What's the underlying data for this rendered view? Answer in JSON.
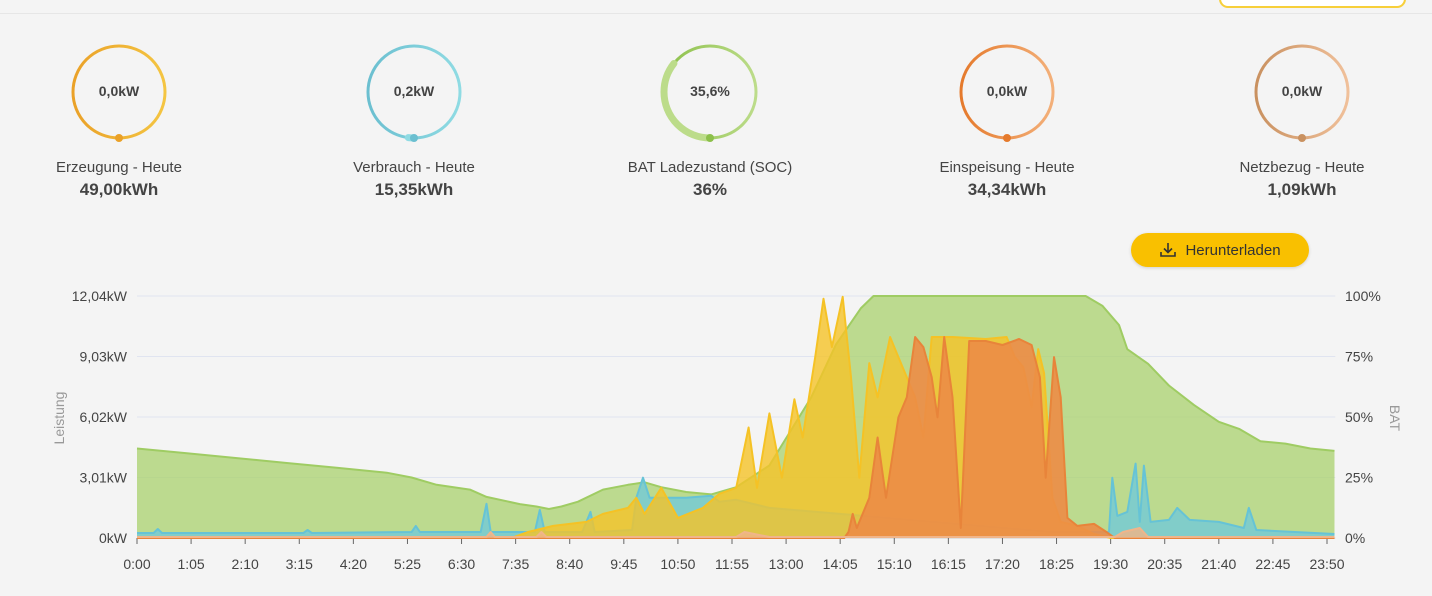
{
  "gauges": [
    {
      "value": "0,0kW",
      "label": "Erzeugung - Heute",
      "total": "49,00kWh",
      "color": "#eaa128",
      "color2": "#f4c542",
      "fill": 0
    },
    {
      "value": "0,2kW",
      "label": "Verbrauch - Heute",
      "total": "15,35kWh",
      "color": "#6bbfd0",
      "color2": "#8fdbe3",
      "fill": 0.02
    },
    {
      "value": "35,6%",
      "label": "BAT Ladezustand (SOC)",
      "total": "36%",
      "color": "#8cc04a",
      "color2": "#bcdc8a",
      "fill": 0.356
    },
    {
      "value": "0,0kW",
      "label": "Einspeisung - Heute",
      "total": "34,34kWh",
      "color": "#e57a2c",
      "color2": "#f3b07a",
      "fill": 0
    },
    {
      "value": "0,0kW",
      "label": "Netzbezug - Heute",
      "total": "1,09kWh",
      "color": "#c99160",
      "color2": "#f0c09a",
      "fill": 0
    }
  ],
  "download": {
    "label": "Herunterladen",
    "icon": "download-icon"
  },
  "chart_data": {
    "type": "area",
    "ylabel": "Leistung",
    "y2label": "BAT",
    "ylim": [
      0,
      12.04
    ],
    "y2lim": [
      0,
      100
    ],
    "yticks": [
      "0kW",
      "3,01kW",
      "6,02kW",
      "9,03kW",
      "12,04kW"
    ],
    "y2ticks": [
      "0%",
      "25%",
      "50%",
      "75%",
      "100%"
    ],
    "xticks": [
      "0:00",
      "1:05",
      "2:10",
      "3:15",
      "4:20",
      "5:25",
      "6:30",
      "7:35",
      "8:40",
      "9:45",
      "10:50",
      "11:55",
      "13:00",
      "14:05",
      "15:10",
      "16:15",
      "17:20",
      "18:25",
      "19:30",
      "20:35",
      "21:40",
      "22:45",
      "23:50"
    ],
    "x_unit": "minutes since midnight",
    "grid": true,
    "series": [
      {
        "key": "soc",
        "axis": "right",
        "color": "#9fcc63",
        "fill": "rgba(170,210,110,0.75)",
        "points": [
          [
            0,
            37
          ],
          [
            60,
            35
          ],
          [
            120,
            33
          ],
          [
            180,
            31
          ],
          [
            240,
            29
          ],
          [
            300,
            27
          ],
          [
            330,
            25
          ],
          [
            360,
            22
          ],
          [
            400,
            20
          ],
          [
            420,
            17
          ],
          [
            460,
            14
          ],
          [
            480,
            13
          ],
          [
            495,
            12
          ],
          [
            510,
            13
          ],
          [
            530,
            15
          ],
          [
            560,
            20
          ],
          [
            590,
            22
          ],
          [
            610,
            23
          ],
          [
            630,
            21
          ],
          [
            660,
            19
          ],
          [
            690,
            18
          ],
          [
            720,
            21
          ],
          [
            760,
            30
          ],
          [
            810,
            58
          ],
          [
            840,
            80
          ],
          [
            870,
            95
          ],
          [
            885,
            100
          ],
          [
            1140,
            100
          ],
          [
            1160,
            96
          ],
          [
            1180,
            88
          ],
          [
            1190,
            78
          ],
          [
            1215,
            72
          ],
          [
            1240,
            63
          ],
          [
            1270,
            55
          ],
          [
            1300,
            48
          ],
          [
            1325,
            45
          ],
          [
            1350,
            40
          ],
          [
            1380,
            39
          ],
          [
            1410,
            37
          ],
          [
            1439,
            36
          ]
        ]
      },
      {
        "key": "verbrauch",
        "axis": "left",
        "color": "#66c3d6",
        "fill": "rgba(110,200,220,0.75)",
        "points": [
          [
            0,
            0.25
          ],
          [
            20,
            0.25
          ],
          [
            25,
            0.45
          ],
          [
            30,
            0.25
          ],
          [
            200,
            0.25
          ],
          [
            205,
            0.4
          ],
          [
            210,
            0.25
          ],
          [
            330,
            0.3
          ],
          [
            335,
            0.6
          ],
          [
            340,
            0.3
          ],
          [
            413,
            0.3
          ],
          [
            420,
            1.7
          ],
          [
            425,
            0.3
          ],
          [
            478,
            0.3
          ],
          [
            484,
            1.4
          ],
          [
            490,
            0.3
          ],
          [
            535,
            0.3
          ],
          [
            545,
            1.3
          ],
          [
            550,
            0.3
          ],
          [
            595,
            0.4
          ],
          [
            600,
            2
          ],
          [
            608,
            3
          ],
          [
            616,
            2
          ],
          [
            660,
            2
          ],
          [
            690,
            2.1
          ],
          [
            700,
            1.8
          ],
          [
            720,
            1.9
          ],
          [
            760,
            1.5
          ],
          [
            1100,
            0.3
          ],
          [
            1168,
            0.3
          ],
          [
            1172,
            3
          ],
          [
            1178,
            1.1
          ],
          [
            1190,
            1.3
          ],
          [
            1200,
            3.7
          ],
          [
            1205,
            0.8
          ],
          [
            1210,
            3.6
          ],
          [
            1218,
            0.8
          ],
          [
            1240,
            0.9
          ],
          [
            1250,
            1.5
          ],
          [
            1265,
            0.9
          ],
          [
            1300,
            0.8
          ],
          [
            1330,
            0.5
          ],
          [
            1336,
            1.5
          ],
          [
            1345,
            0.4
          ],
          [
            1439,
            0.2
          ]
        ]
      },
      {
        "key": "erzeugung",
        "axis": "left",
        "color": "#f5c225",
        "fill": "rgba(245,195,40,0.8)",
        "points": [
          [
            0,
            0
          ],
          [
            450,
            0
          ],
          [
            470,
            0.3
          ],
          [
            500,
            0.6
          ],
          [
            540,
            0.8
          ],
          [
            560,
            1.2
          ],
          [
            590,
            1.5
          ],
          [
            600,
            2.0
          ],
          [
            610,
            1.2
          ],
          [
            630,
            2.5
          ],
          [
            650,
            1.0
          ],
          [
            680,
            1.5
          ],
          [
            700,
            2.2
          ],
          [
            720,
            2.5
          ],
          [
            735,
            5.5
          ],
          [
            745,
            2.5
          ],
          [
            760,
            6.2
          ],
          [
            775,
            3
          ],
          [
            790,
            6.9
          ],
          [
            800,
            5
          ],
          [
            815,
            9
          ],
          [
            825,
            11.9
          ],
          [
            835,
            9.5
          ],
          [
            848,
            12
          ],
          [
            858,
            8
          ],
          [
            868,
            3
          ],
          [
            880,
            8.7
          ],
          [
            890,
            7
          ],
          [
            905,
            10
          ],
          [
            915,
            9
          ],
          [
            925,
            8
          ],
          [
            935,
            7
          ],
          [
            945,
            5
          ],
          [
            955,
            10
          ],
          [
            980,
            10
          ],
          [
            1020,
            9.9
          ],
          [
            1045,
            10
          ],
          [
            1055,
            9
          ],
          [
            1065,
            8.5
          ],
          [
            1075,
            6.5
          ],
          [
            1083,
            9.4
          ],
          [
            1090,
            8.2
          ],
          [
            1100,
            2
          ],
          [
            1110,
            0.8
          ],
          [
            1130,
            0.6
          ],
          [
            1150,
            0.2
          ],
          [
            1170,
            0
          ],
          [
            1439,
            0
          ]
        ]
      },
      {
        "key": "einspeisung",
        "axis": "left",
        "color": "#e8843a",
        "fill": "rgba(236,140,70,0.9)",
        "points": [
          [
            0,
            0
          ],
          [
            850,
            0
          ],
          [
            855,
            0.3
          ],
          [
            860,
            1.2
          ],
          [
            865,
            0.5
          ],
          [
            880,
            2
          ],
          [
            890,
            5
          ],
          [
            900,
            2
          ],
          [
            915,
            6
          ],
          [
            925,
            7
          ],
          [
            935,
            10
          ],
          [
            945,
            9.5
          ],
          [
            955,
            8
          ],
          [
            962,
            6
          ],
          [
            970,
            10
          ],
          [
            980,
            7
          ],
          [
            990,
            0.5
          ],
          [
            1000,
            9.8
          ],
          [
            1020,
            9.8
          ],
          [
            1040,
            9.6
          ],
          [
            1060,
            9.9
          ],
          [
            1075,
            9.6
          ],
          [
            1085,
            8
          ],
          [
            1092,
            3
          ],
          [
            1102,
            9
          ],
          [
            1110,
            7
          ],
          [
            1118,
            1
          ],
          [
            1130,
            0.6
          ],
          [
            1150,
            0.7
          ],
          [
            1165,
            0.3
          ],
          [
            1175,
            0
          ],
          [
            1439,
            0
          ]
        ]
      },
      {
        "key": "netzbezug",
        "axis": "left",
        "color": "#f0b58a",
        "fill": "rgba(240,180,135,0.8)",
        "points": [
          [
            0,
            0.05
          ],
          [
            420,
            0.05
          ],
          [
            425,
            0.3
          ],
          [
            430,
            0.05
          ],
          [
            480,
            0.05
          ],
          [
            486,
            0.3
          ],
          [
            492,
            0.05
          ],
          [
            720,
            0.05
          ],
          [
            730,
            0.3
          ],
          [
            760,
            0.05
          ],
          [
            1175,
            0.05
          ],
          [
            1185,
            0.3
          ],
          [
            1205,
            0.5
          ],
          [
            1215,
            0.05
          ],
          [
            1439,
            0.05
          ]
        ]
      }
    ]
  }
}
